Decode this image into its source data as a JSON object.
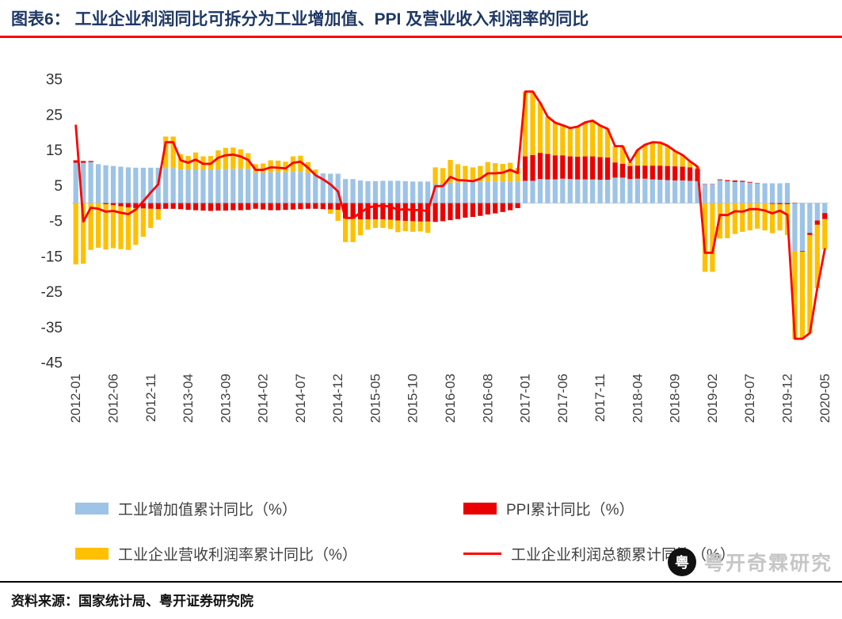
{
  "header": {
    "title": "图表6： 工业企业利润同比可拆分为工业增加值、PPI 及营业收入利润率的同比",
    "accent_color": "#FE0000",
    "title_color": "#1F3864"
  },
  "chart_data": {
    "type": "bar",
    "subtype": "stacked-bar-with-line",
    "title": "工业企业利润同比可拆分为工业增加值、PPI 及营业收入利润率的同比",
    "ylim": [
      -45,
      35
    ],
    "ytick_step": 10,
    "x_tick_every": 5,
    "grid": false,
    "legend_position": "bottom",
    "x": [
      "2012-01",
      "2012-02",
      "2012-03",
      "2012-04",
      "2012-05",
      "2012-06",
      "2012-07",
      "2012-08",
      "2012-09",
      "2012-10",
      "2012-11",
      "2012-12",
      "2013-01",
      "2013-02",
      "2013-03",
      "2013-04",
      "2013-05",
      "2013-06",
      "2013-07",
      "2013-08",
      "2013-09",
      "2013-10",
      "2013-11",
      "2013-12",
      "2014-01",
      "2014-02",
      "2014-03",
      "2014-04",
      "2014-05",
      "2014-06",
      "2014-07",
      "2014-08",
      "2014-09",
      "2014-10",
      "2014-11",
      "2014-12",
      "2015-01",
      "2015-02",
      "2015-03",
      "2015-04",
      "2015-05",
      "2015-06",
      "2015-07",
      "2015-08",
      "2015-09",
      "2015-10",
      "2015-11",
      "2015-12",
      "2016-01",
      "2016-02",
      "2016-03",
      "2016-04",
      "2016-05",
      "2016-06",
      "2016-07",
      "2016-08",
      "2016-09",
      "2016-10",
      "2016-11",
      "2016-12",
      "2017-01",
      "2017-02",
      "2017-03",
      "2017-04",
      "2017-05",
      "2017-06",
      "2017-07",
      "2017-08",
      "2017-09",
      "2017-10",
      "2017-11",
      "2017-12",
      "2018-01",
      "2018-02",
      "2018-03",
      "2018-04",
      "2018-05",
      "2018-06",
      "2018-07",
      "2018-08",
      "2018-09",
      "2018-10",
      "2018-11",
      "2018-12",
      "2019-01",
      "2019-02",
      "2019-03",
      "2019-04",
      "2019-05",
      "2019-06",
      "2019-07",
      "2019-08",
      "2019-09",
      "2019-10",
      "2019-11",
      "2019-12",
      "2020-01",
      "2020-02",
      "2020-03",
      "2020-04",
      "2020-05"
    ],
    "series": [
      {
        "name": "工业增加值累计同比（%）",
        "type": "bar",
        "color": "#9DC3E6",
        "values": [
          11.4,
          11.4,
          11.6,
          11.0,
          10.7,
          10.5,
          10.3,
          10.1,
          10.0,
          10.0,
          10.0,
          10.0,
          9.9,
          9.9,
          9.5,
          9.4,
          9.4,
          9.3,
          9.4,
          9.5,
          9.6,
          9.7,
          9.7,
          9.7,
          8.6,
          8.6,
          8.7,
          8.7,
          8.7,
          8.8,
          8.8,
          8.5,
          8.5,
          8.4,
          8.3,
          8.3,
          6.8,
          6.8,
          6.4,
          6.2,
          6.2,
          6.3,
          6.3,
          6.3,
          6.2,
          6.1,
          6.1,
          6.1,
          5.4,
          5.4,
          5.8,
          5.8,
          5.9,
          6.0,
          6.0,
          6.0,
          6.0,
          6.0,
          6.0,
          6.0,
          6.3,
          6.3,
          6.8,
          6.7,
          6.7,
          6.9,
          6.8,
          6.7,
          6.7,
          6.7,
          6.6,
          6.6,
          7.2,
          7.2,
          6.8,
          6.9,
          6.9,
          6.7,
          6.6,
          6.5,
          6.4,
          6.4,
          6.3,
          6.2,
          5.3,
          5.3,
          6.5,
          6.2,
          6.0,
          6.0,
          5.8,
          5.6,
          5.6,
          5.6,
          5.6,
          5.7,
          -13.5,
          -13.5,
          -8.4,
          -4.9,
          -2.8
        ]
      },
      {
        "name": "PPI累计同比（%）",
        "type": "bar",
        "color": "#EB0000",
        "values": [
          0.7,
          0.5,
          0.3,
          0.0,
          -0.3,
          -0.6,
          -0.9,
          -1.2,
          -1.4,
          -1.5,
          -1.6,
          -1.7,
          -1.6,
          -1.6,
          -1.7,
          -1.9,
          -2.0,
          -2.1,
          -2.2,
          -2.1,
          -2.1,
          -2.0,
          -2.0,
          -1.9,
          -1.6,
          -1.8,
          -2.0,
          -2.0,
          -1.9,
          -1.8,
          -1.7,
          -1.6,
          -1.6,
          -1.7,
          -1.8,
          -1.9,
          -4.3,
          -4.4,
          -4.6,
          -4.6,
          -4.6,
          -4.6,
          -4.7,
          -4.9,
          -5.0,
          -5.1,
          -5.2,
          -5.2,
          -5.3,
          -5.1,
          -4.8,
          -4.5,
          -4.1,
          -3.9,
          -3.6,
          -3.2,
          -2.9,
          -2.5,
          -2.0,
          -1.4,
          6.9,
          7.3,
          7.4,
          7.2,
          6.8,
          6.6,
          6.4,
          6.4,
          6.5,
          6.5,
          6.4,
          6.3,
          4.3,
          3.9,
          3.7,
          3.7,
          3.7,
          3.9,
          4.0,
          4.0,
          4.0,
          3.9,
          3.8,
          3.5,
          0.1,
          0.1,
          0.2,
          0.3,
          0.4,
          0.3,
          0.2,
          0.1,
          0.0,
          -0.2,
          -0.3,
          -0.3,
          0.1,
          -0.2,
          -0.6,
          -1.2,
          -1.7
        ]
      },
      {
        "name": "工业企业营收利润率累计同比（%）",
        "type": "bar",
        "color": "#FFC000",
        "values": [
          -17.3,
          -17.1,
          -13.2,
          -12.6,
          -12.8,
          -12.1,
          -12.1,
          -12.0,
          -10.4,
          -8.0,
          -5.4,
          -3.0,
          8.9,
          8.9,
          4.3,
          3.9,
          4.9,
          3.9,
          3.9,
          5.4,
          6.0,
          6.0,
          5.5,
          4.4,
          2.4,
          2.6,
          3.4,
          3.3,
          3.0,
          4.4,
          4.6,
          3.1,
          1.0,
          0.0,
          -1.2,
          -3.1,
          -6.7,
          -6.6,
          -4.5,
          -2.9,
          -2.4,
          -2.4,
          -2.6,
          -3.3,
          -2.9,
          -3.0,
          -2.8,
          -3.2,
          4.7,
          4.5,
          6.4,
          5.2,
          4.6,
          4.1,
          4.5,
          5.6,
          5.3,
          5.1,
          5.4,
          3.9,
          18.3,
          17.9,
          14.1,
          10.5,
          9.2,
          8.5,
          8.0,
          8.5,
          9.6,
          10.1,
          8.9,
          8.1,
          4.6,
          5.0,
          1.1,
          4.4,
          5.9,
          6.6,
          6.5,
          5.7,
          4.3,
          3.3,
          1.7,
          0.6,
          -19.4,
          -19.4,
          -10.0,
          -9.9,
          -8.7,
          -8.1,
          -7.7,
          -7.2,
          -7.7,
          -8.3,
          -7.4,
          -8.7,
          -24.9,
          -24.6,
          -27.7,
          -17.9,
          -8.5
        ]
      },
      {
        "name": "工业企业利润总额累计同比（%）",
        "type": "line",
        "color": "#FE0000",
        "values": [
          21.9,
          -5.2,
          -1.3,
          -1.6,
          -2.4,
          -2.2,
          -2.7,
          -3.1,
          -1.8,
          0.5,
          3.0,
          5.3,
          17.2,
          17.2,
          12.1,
          11.4,
          12.3,
          11.1,
          11.1,
          12.8,
          13.5,
          13.7,
          13.2,
          12.2,
          9.4,
          9.4,
          10.1,
          10.0,
          9.8,
          11.4,
          11.7,
          10.0,
          7.9,
          6.7,
          5.3,
          3.3,
          -4.2,
          -4.2,
          -2.7,
          -1.3,
          -0.8,
          -0.7,
          -1.0,
          -1.9,
          -1.7,
          -2.0,
          -1.9,
          -2.3,
          4.8,
          4.8,
          7.4,
          6.5,
          6.4,
          6.2,
          6.9,
          8.4,
          8.4,
          8.6,
          9.4,
          8.5,
          31.5,
          31.5,
          28.3,
          24.4,
          22.7,
          22.0,
          21.2,
          21.6,
          22.8,
          23.3,
          21.9,
          21.0,
          16.1,
          16.1,
          11.6,
          15.0,
          16.5,
          17.2,
          17.1,
          16.2,
          14.7,
          13.6,
          11.8,
          10.3,
          -14.0,
          -14.0,
          -3.3,
          -3.4,
          -2.3,
          -2.4,
          -1.7,
          -1.7,
          -2.1,
          -2.9,
          -2.1,
          -3.3,
          -38.3,
          -38.3,
          -36.7,
          -24.0,
          -13.0
        ]
      }
    ]
  },
  "footer": {
    "logo_glyph": "粤",
    "brand": "粤开奇霖研究",
    "source": "资料来源：国家统计局、粤开证券研究院"
  }
}
